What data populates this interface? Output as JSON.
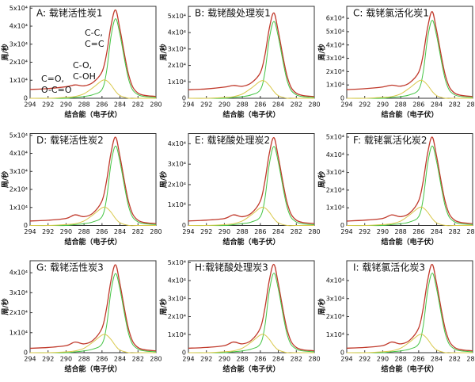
{
  "chart_data": [
    {
      "type": "line",
      "title": "A: 载铑活性炭1",
      "xlabel": "结合能（电子伏）",
      "ylabel": "周/秒",
      "annotations": [
        [
          "C=O,",
          "O-C=O"
        ],
        [
          "C-O,",
          "C-OH"
        ],
        [
          "C-C,",
          "C=C"
        ]
      ],
      "x": [
        294,
        292,
        290,
        289,
        288,
        287,
        286,
        285.5,
        285,
        284.5,
        284,
        283,
        282,
        280
      ],
      "xlim": [
        294,
        280
      ],
      "xticks": [
        294,
        292,
        290,
        288,
        286,
        284,
        282,
        280
      ],
      "ylim": [
        0,
        51000
      ],
      "yticks": [
        0,
        {
          "value": 10000,
          "label": "1x10⁴"
        },
        {
          "value": 20000,
          "label": "2x10⁴"
        },
        {
          "value": 30000,
          "label": "3x10⁴"
        },
        {
          "value": 40000,
          "label": "4x10⁴"
        },
        {
          "value": 50000,
          "label": "5x10⁴"
        }
      ],
      "series": [
        {
          "color": "#c0392b",
          "values": [
            4900,
            5400,
            6400,
            7400,
            6900,
            8800,
            14700,
            24500,
            40200,
            49000,
            38200,
            12300,
            2900,
            1000
          ]
        },
        {
          "color": "#44c444",
          "values": [
            0,
            0,
            0,
            500,
            1000,
            2000,
            4900,
            14700,
            34300,
            44100,
            35300,
            9800,
            2000,
            500
          ]
        },
        {
          "color": "#d9c84a",
          "values": [
            0,
            0,
            500,
            1000,
            2500,
            5900,
            9800,
            9800,
            7400,
            3900,
            1500,
            0,
            0,
            0
          ]
        }
      ]
    },
    {
      "type": "line",
      "title": "B: 载铑酸处理炭1",
      "xlabel": "结合能（电子伏）",
      "ylabel": "周/秒",
      "x": [
        294,
        292,
        290,
        289,
        288,
        287,
        286,
        285.5,
        285,
        284.5,
        284,
        283,
        282,
        280
      ],
      "xlim": [
        294,
        280
      ],
      "xticks": [
        294,
        292,
        290,
        288,
        286,
        284,
        282,
        280
      ],
      "ylim": [
        0,
        56000
      ],
      "yticks": [
        0,
        {
          "value": 10000,
          "label": "1x10⁴"
        },
        {
          "value": 20000,
          "label": "2x10⁴"
        },
        {
          "value": 30000,
          "label": "3x10⁴"
        },
        {
          "value": 40000,
          "label": "4x10⁴"
        },
        {
          "value": 50000,
          "label": "5x10⁴"
        }
      ],
      "series": [
        {
          "color": "#c0392b",
          "values": [
            5200,
            5700,
            6800,
            7800,
            7300,
            9400,
            15600,
            26000,
            42600,
            52000,
            40600,
            13000,
            3100,
            1000
          ]
        },
        {
          "color": "#44c444",
          "values": [
            0,
            0,
            0,
            500,
            1000,
            2100,
            5200,
            15600,
            36400,
            46800,
            37400,
            10400,
            2100,
            500
          ]
        },
        {
          "color": "#d9c84a",
          "values": [
            0,
            0,
            500,
            1000,
            2600,
            6200,
            10400,
            10400,
            7800,
            4200,
            1600,
            0,
            0,
            0
          ]
        }
      ]
    },
    {
      "type": "line",
      "title": "C: 载铑氯活化炭1",
      "xlabel": "结合能（电子伏）",
      "ylabel": "周/秒",
      "x": [
        294,
        292,
        290,
        289,
        288,
        287,
        286,
        285.5,
        285,
        284.5,
        284,
        283,
        282,
        280
      ],
      "xlim": [
        294,
        280
      ],
      "xticks": [
        294,
        292,
        290,
        288,
        286,
        284,
        282,
        280
      ],
      "ylim": [
        0,
        69000
      ],
      "yticks": [
        0,
        {
          "value": 10000,
          "label": "1x10⁴"
        },
        {
          "value": 20000,
          "label": "2x10⁴"
        },
        {
          "value": 30000,
          "label": "3x10⁴"
        },
        {
          "value": 40000,
          "label": "4x10⁴"
        },
        {
          "value": 50000,
          "label": "5x10⁴"
        },
        {
          "value": 60000,
          "label": "6x10⁴"
        }
      ],
      "series": [
        {
          "color": "#c0392b",
          "values": [
            6500,
            7200,
            8500,
            9800,
            9100,
            11700,
            19500,
            32500,
            53300,
            65000,
            50700,
            16300,
            3900,
            1300
          ]
        },
        {
          "color": "#44c444",
          "values": [
            0,
            0,
            0,
            700,
            1300,
            2600,
            6500,
            19500,
            45500,
            58500,
            46800,
            13000,
            2600,
            700
          ]
        },
        {
          "color": "#d9c84a",
          "values": [
            0,
            0,
            700,
            1300,
            3300,
            7800,
            13000,
            13000,
            9800,
            5200,
            2000,
            0,
            0,
            0
          ]
        }
      ]
    },
    {
      "type": "line",
      "title": "D: 载铑活性炭2",
      "xlabel": "结合能（电子伏）",
      "ylabel": "周/秒",
      "x": [
        294,
        292,
        290,
        289,
        288,
        287,
        286,
        285.5,
        285,
        284.5,
        284,
        283,
        282,
        280
      ],
      "xlim": [
        294,
        280
      ],
      "xticks": [
        294,
        292,
        290,
        288,
        286,
        284,
        282,
        280
      ],
      "ylim": [
        0,
        51000
      ],
      "yticks": [
        0,
        {
          "value": 10000,
          "label": "1x10⁴"
        },
        {
          "value": 20000,
          "label": "2x10⁴"
        },
        {
          "value": 30000,
          "label": "3x10⁴"
        },
        {
          "value": 40000,
          "label": "4x10⁴"
        },
        {
          "value": 50000,
          "label": "5x10⁴"
        }
      ],
      "series": [
        {
          "color": "#c0392b",
          "values": [
            2500,
            2900,
            3900,
            5900,
            4900,
            6900,
            13700,
            24500,
            40200,
            49000,
            38200,
            12300,
            2900,
            1000
          ]
        },
        {
          "color": "#44c444",
          "values": [
            0,
            0,
            0,
            500,
            1000,
            2000,
            4900,
            14700,
            34300,
            44100,
            35300,
            9800,
            2000,
            500
          ]
        },
        {
          "color": "#d9c84a",
          "values": [
            0,
            0,
            500,
            1000,
            2500,
            5900,
            9800,
            9800,
            7400,
            3900,
            1500,
            0,
            0,
            0
          ]
        }
      ]
    },
    {
      "type": "line",
      "title": "E: 载铑酸处理炭2",
      "xlabel": "结合能（电子伏）",
      "ylabel": "周/秒",
      "x": [
        294,
        292,
        290,
        289,
        288,
        287,
        286,
        285.5,
        285,
        284.5,
        284,
        283,
        282,
        280
      ],
      "xlim": [
        294,
        280
      ],
      "xticks": [
        294,
        292,
        290,
        288,
        286,
        284,
        282,
        280
      ],
      "ylim": [
        0,
        45000
      ],
      "yticks": [
        0,
        {
          "value": 10000,
          "label": "1x10⁴"
        },
        {
          "value": 20000,
          "label": "2x10⁴"
        },
        {
          "value": 30000,
          "label": "3x10⁴"
        },
        {
          "value": 40000,
          "label": "4x10⁴"
        }
      ],
      "series": [
        {
          "color": "#c0392b",
          "values": [
            2200,
            2600,
            3400,
            5200,
            4300,
            6000,
            12000,
            21500,
            35300,
            43000,
            33500,
            10800,
            2600,
            900
          ]
        },
        {
          "color": "#44c444",
          "values": [
            0,
            0,
            0,
            400,
            900,
            1700,
            4300,
            12900,
            30100,
            38700,
            31000,
            8600,
            1700,
            400
          ]
        },
        {
          "color": "#d9c84a",
          "values": [
            0,
            0,
            400,
            900,
            2200,
            5200,
            8600,
            8600,
            6500,
            3400,
            1300,
            0,
            0,
            0
          ]
        }
      ]
    },
    {
      "type": "line",
      "title": "F: 载铑氯活化炭2",
      "xlabel": "结合能（电子伏）",
      "ylabel": "周/秒",
      "x": [
        294,
        292,
        290,
        289,
        288,
        287,
        286,
        285.5,
        285,
        284.5,
        284,
        283,
        282,
        280
      ],
      "xlim": [
        294,
        280
      ],
      "xticks": [
        294,
        292,
        290,
        288,
        286,
        284,
        282,
        280
      ],
      "ylim": [
        0,
        52000
      ],
      "yticks": [
        0,
        {
          "value": 10000,
          "label": "1x10⁴"
        },
        {
          "value": 20000,
          "label": "2x10⁴"
        },
        {
          "value": 30000,
          "label": "3x10⁴"
        },
        {
          "value": 40000,
          "label": "4x10⁴"
        },
        {
          "value": 50000,
          "label": "5x10⁴"
        }
      ],
      "series": [
        {
          "color": "#c0392b",
          "values": [
            2500,
            3000,
            4000,
            6000,
            5000,
            7000,
            14000,
            25000,
            41000,
            50000,
            39000,
            12500,
            3000,
            1000
          ]
        },
        {
          "color": "#44c444",
          "values": [
            0,
            0,
            0,
            500,
            1000,
            2000,
            5000,
            15000,
            35000,
            45000,
            36000,
            10000,
            2000,
            500
          ]
        },
        {
          "color": "#d9c84a",
          "values": [
            0,
            0,
            500,
            1000,
            2500,
            6000,
            10000,
            10000,
            7500,
            4000,
            1500,
            0,
            0,
            0
          ]
        }
      ]
    },
    {
      "type": "line",
      "title": "G: 载铑活性炭3",
      "xlabel": "结合能（电子伏）",
      "ylabel": "周/秒",
      "x": [
        294,
        292,
        290,
        289,
        288,
        287,
        286,
        285.5,
        285,
        284.5,
        284,
        283,
        282,
        280
      ],
      "xlim": [
        294,
        280
      ],
      "xticks": [
        294,
        292,
        290,
        288,
        286,
        284,
        282,
        280
      ],
      "ylim": [
        0,
        46000
      ],
      "yticks": [
        0,
        {
          "value": 10000,
          "label": "1x10⁴"
        },
        {
          "value": 20000,
          "label": "2x10⁴"
        },
        {
          "value": 30000,
          "label": "3x10⁴"
        },
        {
          "value": 40000,
          "label": "4x10⁴"
        }
      ],
      "series": [
        {
          "color": "#c0392b",
          "values": [
            2200,
            2600,
            3500,
            5300,
            4400,
            6200,
            12300,
            22000,
            36100,
            44000,
            34300,
            11000,
            2600,
            900
          ]
        },
        {
          "color": "#44c444",
          "values": [
            0,
            0,
            0,
            400,
            900,
            1800,
            4400,
            13200,
            30800,
            39600,
            31700,
            8800,
            1800,
            400
          ]
        },
        {
          "color": "#d9c84a",
          "values": [
            0,
            0,
            400,
            900,
            2200,
            5300,
            8800,
            8800,
            6600,
            3500,
            1300,
            0,
            0,
            0
          ]
        }
      ]
    },
    {
      "type": "line",
      "title": "H:载铑酸处理炭3",
      "xlabel": "结合能（电子伏）",
      "ylabel": "周/秒",
      "x": [
        294,
        292,
        290,
        289,
        288,
        287,
        286,
        285.5,
        285,
        284.5,
        284,
        283,
        282,
        280
      ],
      "xlim": [
        294,
        280
      ],
      "xticks": [
        294,
        292,
        290,
        288,
        286,
        284,
        282,
        280
      ],
      "ylim": [
        0,
        51000
      ],
      "yticks": [
        0,
        {
          "value": 10000,
          "label": "1x10⁴"
        },
        {
          "value": 20000,
          "label": "2x10⁴"
        },
        {
          "value": 30000,
          "label": "3x10⁴"
        },
        {
          "value": 40000,
          "label": "4x10⁴"
        },
        {
          "value": 50000,
          "label": "5x10⁴"
        }
      ],
      "series": [
        {
          "color": "#c0392b",
          "values": [
            2500,
            2900,
            3900,
            5900,
            4900,
            6900,
            13700,
            24500,
            40200,
            49000,
            38200,
            12300,
            2900,
            1000
          ]
        },
        {
          "color": "#44c444",
          "values": [
            0,
            0,
            0,
            500,
            1000,
            2000,
            4900,
            14700,
            34300,
            44100,
            35300,
            9800,
            2000,
            500
          ]
        },
        {
          "color": "#d9c84a",
          "values": [
            0,
            0,
            500,
            1000,
            2500,
            5900,
            9800,
            9800,
            7400,
            3900,
            1500,
            0,
            0,
            0
          ]
        }
      ]
    },
    {
      "type": "line",
      "title": "I: 载铑氯活化炭3",
      "xlabel": "结合能（电子伏）",
      "ylabel": "周/秒",
      "x": [
        294,
        292,
        290,
        289,
        288,
        287,
        286,
        285.5,
        285,
        284.5,
        284,
        283,
        282,
        280
      ],
      "xlim": [
        294,
        280
      ],
      "xticks": [
        294,
        292,
        290,
        288,
        286,
        284,
        282,
        280
      ],
      "ylim": [
        0,
        51000
      ],
      "yticks": [
        0,
        {
          "value": 10000,
          "label": "1x10⁴"
        },
        {
          "value": 20000,
          "label": "2x10⁴"
        },
        {
          "value": 30000,
          "label": "3x10⁴"
        },
        {
          "value": 40000,
          "label": "4x10⁴"
        }
      ],
      "series": [
        {
          "color": "#c0392b",
          "values": [
            2500,
            2900,
            3900,
            5900,
            4900,
            6900,
            13700,
            24500,
            40200,
            49000,
            38200,
            12300,
            2900,
            1000
          ]
        },
        {
          "color": "#44c444",
          "values": [
            0,
            0,
            0,
            500,
            1000,
            2000,
            4900,
            14700,
            34300,
            44100,
            35300,
            9800,
            2000,
            500
          ]
        },
        {
          "color": "#d9c84a",
          "values": [
            0,
            0,
            500,
            1000,
            2500,
            5900,
            9800,
            9800,
            7400,
            3900,
            1500,
            0,
            0,
            0
          ]
        }
      ]
    }
  ]
}
